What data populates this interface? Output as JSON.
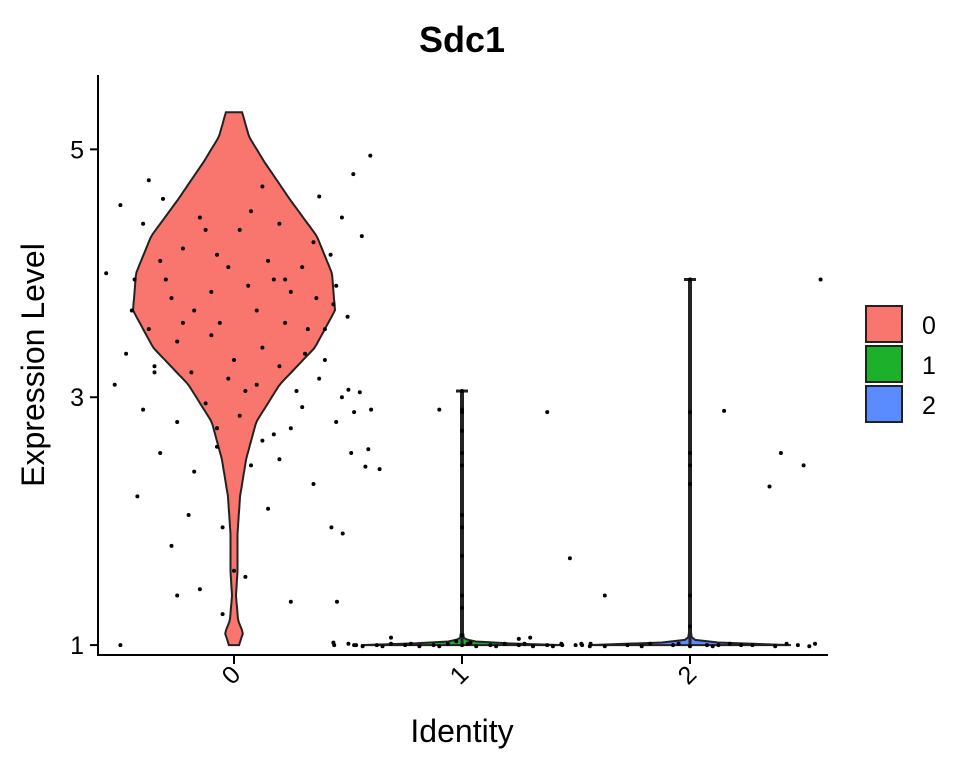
{
  "chart_data": {
    "type": "violin",
    "title": "Sdc1",
    "xlabel": "Identity",
    "ylabel": "Expression Level",
    "categories": [
      "0",
      "1",
      "2"
    ],
    "ylim": [
      0.92,
      5.6
    ],
    "yticks": [
      1,
      3,
      5
    ],
    "grid": false,
    "legend_position": "right",
    "colors": {
      "0": "#F8766D",
      "1": "#1DB12B",
      "2": "#5A8CFF"
    },
    "series": [
      {
        "name": "0",
        "range": [
          1.0,
          5.3
        ],
        "profile": [
          [
            1.0,
            0.05
          ],
          [
            1.1,
            0.09
          ],
          [
            1.2,
            0.04
          ],
          [
            1.4,
            0.02
          ],
          [
            1.6,
            0.035
          ],
          [
            1.9,
            0.035
          ],
          [
            2.2,
            0.06
          ],
          [
            2.5,
            0.12
          ],
          [
            2.8,
            0.22
          ],
          [
            3.1,
            0.45
          ],
          [
            3.4,
            0.8
          ],
          [
            3.7,
            1.0
          ],
          [
            4.0,
            0.97
          ],
          [
            4.3,
            0.82
          ],
          [
            4.6,
            0.55
          ],
          [
            4.9,
            0.3
          ],
          [
            5.1,
            0.15
          ],
          [
            5.3,
            0.08
          ]
        ],
        "points": [
          [
            0.1,
            4.55
          ],
          [
            0.18,
            4.4
          ],
          [
            0.25,
            4.6
          ],
          [
            0.32,
            4.2
          ],
          [
            0.4,
            4.35
          ],
          [
            0.05,
            4.0
          ],
          [
            0.15,
            3.95
          ],
          [
            0.28,
            3.8
          ],
          [
            0.36,
            3.7
          ],
          [
            0.45,
            3.6
          ],
          [
            0.55,
            3.9
          ],
          [
            0.62,
            4.1
          ],
          [
            0.7,
            3.85
          ],
          [
            0.78,
            4.25
          ],
          [
            0.85,
            3.75
          ],
          [
            0.2,
            3.55
          ],
          [
            0.3,
            3.45
          ],
          [
            0.42,
            3.5
          ],
          [
            0.5,
            3.3
          ],
          [
            0.6,
            3.4
          ],
          [
            0.68,
            3.6
          ],
          [
            0.75,
            3.35
          ],
          [
            0.82,
            3.55
          ],
          [
            0.9,
            3.65
          ],
          [
            0.12,
            3.35
          ],
          [
            0.22,
            3.25
          ],
          [
            0.35,
            3.2
          ],
          [
            0.48,
            3.15
          ],
          [
            0.58,
            3.1
          ],
          [
            0.66,
            3.25
          ],
          [
            0.72,
            3.05
          ],
          [
            0.8,
            3.15
          ],
          [
            0.88,
            3.0
          ],
          [
            0.08,
            3.1
          ],
          [
            0.18,
            2.9
          ],
          [
            0.3,
            2.8
          ],
          [
            0.4,
            2.95
          ],
          [
            0.52,
            2.85
          ],
          [
            0.64,
            2.7
          ],
          [
            0.74,
            2.92
          ],
          [
            0.86,
            2.8
          ],
          [
            0.24,
            2.55
          ],
          [
            0.36,
            2.4
          ],
          [
            0.44,
            2.6
          ],
          [
            0.56,
            2.45
          ],
          [
            0.66,
            2.5
          ],
          [
            0.78,
            2.3
          ],
          [
            0.16,
            2.2
          ],
          [
            0.34,
            2.05
          ],
          [
            0.46,
            1.95
          ],
          [
            0.62,
            2.1
          ],
          [
            0.28,
            1.8
          ],
          [
            0.5,
            1.6
          ],
          [
            0.38,
            1.45
          ],
          [
            0.54,
            1.55
          ],
          [
            0.46,
            1.25
          ],
          [
            0.3,
            1.4
          ],
          [
            0.7,
            1.35
          ],
          [
            0.2,
            4.75
          ],
          [
            0.6,
            4.7
          ],
          [
            0.8,
            4.62
          ],
          [
            0.92,
            4.8
          ],
          [
            0.95,
            4.3
          ],
          [
            0.98,
            4.95
          ],
          [
            0.88,
            4.45
          ],
          [
            0.1,
            1.0
          ],
          [
            0.85,
            1.02
          ],
          [
            0.93,
            1.0
          ],
          [
            0.26,
            3.95
          ],
          [
            0.44,
            4.15
          ],
          [
            0.52,
            4.35
          ],
          [
            0.56,
            4.5
          ],
          [
            0.64,
            3.95
          ],
          [
            0.76,
            3.55
          ],
          [
            0.24,
            4.1
          ],
          [
            0.38,
            4.45
          ],
          [
            0.48,
            4.05
          ],
          [
            0.66,
            4.4
          ],
          [
            0.74,
            4.05
          ],
          [
            0.84,
            4.15
          ],
          [
            0.14,
            3.7
          ],
          [
            0.32,
            3.6
          ],
          [
            0.42,
            3.85
          ],
          [
            0.58,
            3.7
          ],
          [
            0.68,
            3.95
          ],
          [
            0.79,
            3.8
          ],
          [
            0.86,
            3.9
          ],
          [
            0.22,
            3.2
          ],
          [
            0.54,
            3.05
          ],
          [
            0.6,
            2.65
          ],
          [
            0.7,
            2.75
          ],
          [
            0.82,
            3.3
          ],
          [
            0.44,
            2.75
          ]
        ]
      },
      {
        "name": "1",
        "range": [
          1.0,
          3.05
        ],
        "profile": [
          [
            1.0,
            1.0
          ],
          [
            1.01,
            0.55
          ],
          [
            1.03,
            0.12
          ],
          [
            1.05,
            0.02
          ],
          [
            1.1,
            0.01
          ],
          [
            3.05,
            0.01
          ]
        ],
        "points": [
          [
            0.05,
            1.0
          ],
          [
            0.1,
            1.01
          ],
          [
            0.15,
            0.99
          ],
          [
            0.2,
            1.0
          ],
          [
            0.25,
            1.01
          ],
          [
            0.3,
            1.0
          ],
          [
            0.35,
            0.99
          ],
          [
            0.4,
            1.0
          ],
          [
            0.45,
            1.01
          ],
          [
            0.5,
            1.0
          ],
          [
            0.55,
            0.99
          ],
          [
            0.6,
            1.0
          ],
          [
            0.65,
            1.01
          ],
          [
            0.7,
            1.0
          ],
          [
            0.75,
            0.99
          ],
          [
            0.8,
            1.0
          ],
          [
            0.85,
            1.01
          ],
          [
            0.9,
            1.0
          ],
          [
            0.95,
            0.99
          ],
          [
            0.12,
            1.0
          ],
          [
            0.22,
            0.99
          ],
          [
            0.32,
            1.01
          ],
          [
            0.42,
            0.99
          ],
          [
            0.52,
            1.01
          ],
          [
            0.62,
            0.99
          ],
          [
            0.72,
            1.01
          ],
          [
            0.82,
            0.99
          ],
          [
            0.92,
            1.01
          ],
          [
            0.48,
            1.03
          ],
          [
            0.53,
            1.02
          ],
          [
            0.7,
            1.05
          ],
          [
            0.74,
            1.06
          ],
          [
            0.25,
            1.06
          ],
          [
            0.5,
            3.05
          ],
          [
            0.5,
            2.9
          ],
          [
            0.5,
            2.88
          ],
          [
            0.5,
            2.73
          ],
          [
            0.5,
            2.55
          ],
          [
            0.5,
            2.45
          ],
          [
            0.5,
            2.05
          ],
          [
            0.5,
            1.95
          ],
          [
            0.5,
            1.72
          ],
          [
            0.5,
            1.4
          ],
          [
            0.5,
            1.3
          ],
          [
            0.5,
            1.08
          ],
          [
            0.1,
            3.06
          ],
          [
            0.14,
            3.04
          ],
          [
            0.18,
            2.9
          ],
          [
            0.12,
            2.88
          ],
          [
            0.21,
            2.42
          ],
          [
            0.16,
            2.44
          ],
          [
            0.11,
            2.55
          ],
          [
            0.17,
            2.58
          ],
          [
            0.42,
            2.9
          ],
          [
            0.8,
            2.88
          ],
          [
            0.88,
            1.7
          ],
          [
            0.04,
            1.95
          ],
          [
            0.08,
            1.9
          ],
          [
            0.06,
            1.35
          ]
        ]
      },
      {
        "name": "2",
        "range": [
          1.0,
          3.95
        ],
        "profile": [
          [
            1.0,
            1.0
          ],
          [
            1.01,
            0.5
          ],
          [
            1.03,
            0.1
          ],
          [
            1.05,
            0.02
          ],
          [
            1.1,
            0.01
          ],
          [
            3.95,
            0.01
          ]
        ],
        "points": [
          [
            0.05,
            1.0
          ],
          [
            0.12,
            1.0
          ],
          [
            0.2,
            0.99
          ],
          [
            0.28,
            1.0
          ],
          [
            0.36,
            1.01
          ],
          [
            0.44,
            1.0
          ],
          [
            0.5,
            0.99
          ],
          [
            0.56,
            1.0
          ],
          [
            0.64,
            1.01
          ],
          [
            0.72,
            1.0
          ],
          [
            0.8,
            0.99
          ],
          [
            0.88,
            1.0
          ],
          [
            0.94,
            1.01
          ],
          [
            0.15,
            1.01
          ],
          [
            0.33,
            0.99
          ],
          [
            0.46,
            1.01
          ],
          [
            0.58,
            0.99
          ],
          [
            0.68,
            1.0
          ],
          [
            0.84,
            1.01
          ],
          [
            0.92,
            0.99
          ],
          [
            0.5,
            3.95
          ],
          [
            0.5,
            2.88
          ],
          [
            0.5,
            2.55
          ],
          [
            0.5,
            2.45
          ],
          [
            0.5,
            2.3
          ],
          [
            0.5,
            1.4
          ],
          [
            0.5,
            1.15
          ],
          [
            0.2,
            1.4
          ],
          [
            0.6,
            1.0
          ],
          [
            0.62,
            2.89
          ],
          [
            0.82,
            2.55
          ],
          [
            0.9,
            2.45
          ],
          [
            0.78,
            2.28
          ],
          [
            0.96,
            3.95
          ]
        ]
      }
    ]
  }
}
